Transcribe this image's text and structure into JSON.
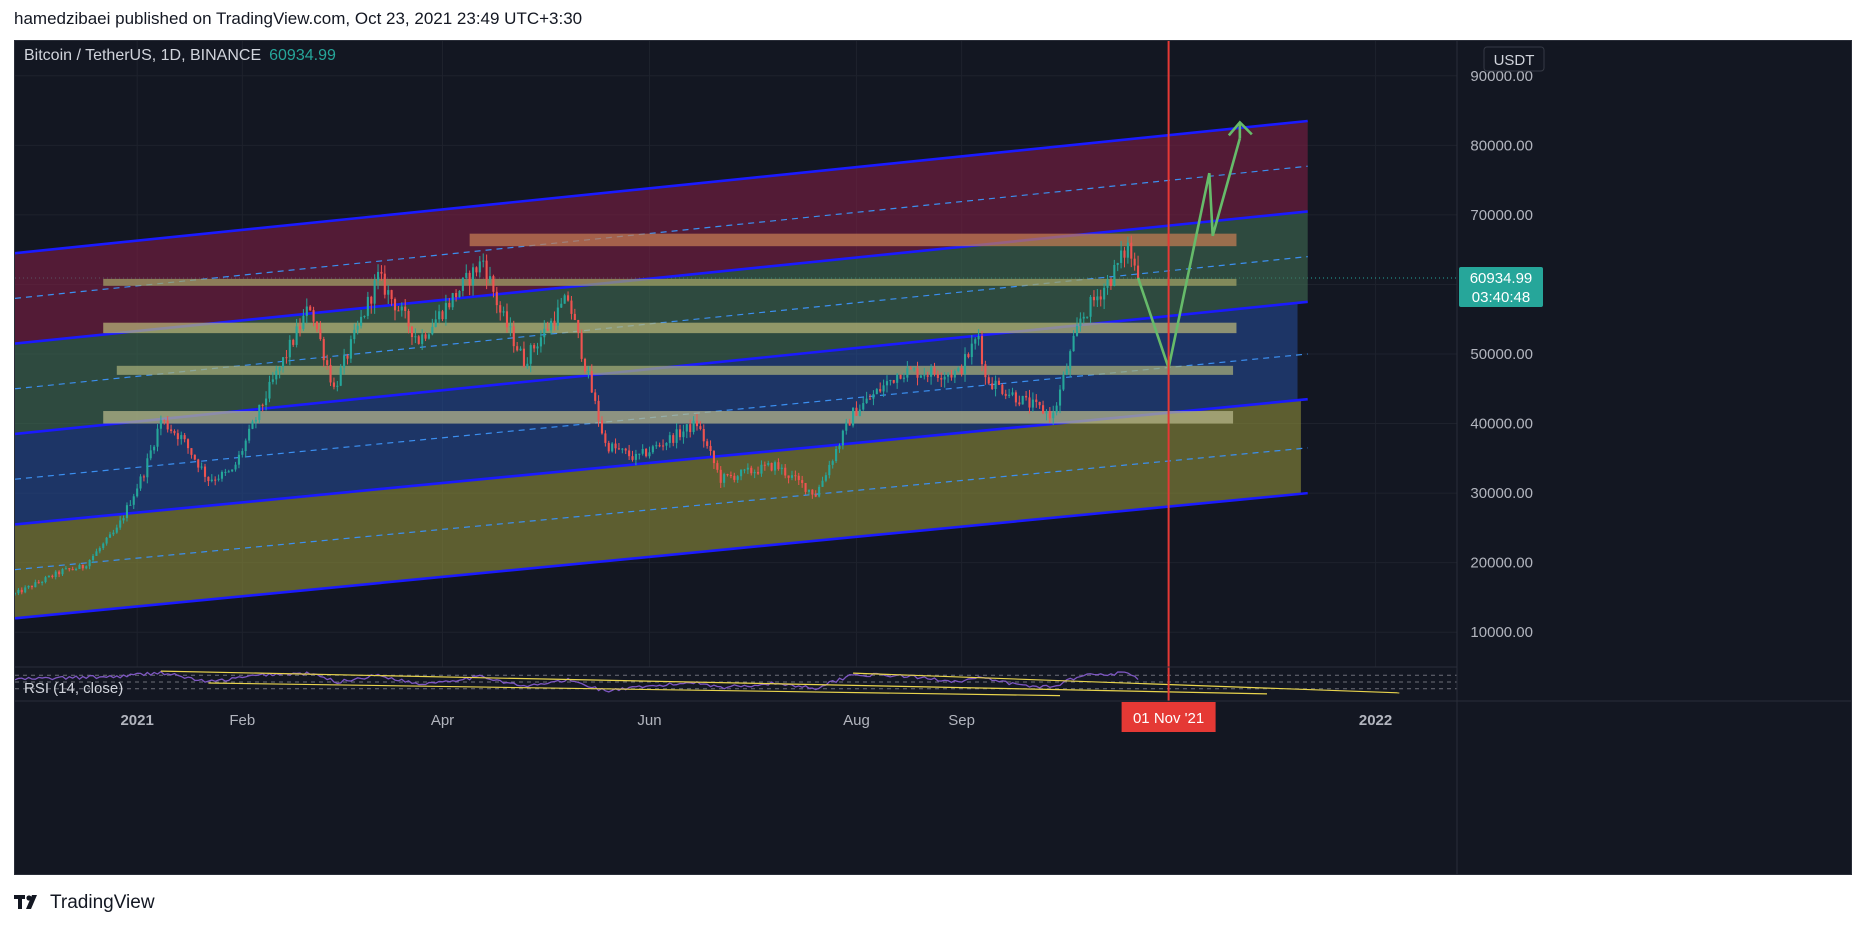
{
  "header": {
    "text": "hamedzibaei published on TradingView.com, Oct 23, 2021 23:49 UTC+3:30"
  },
  "footer": {
    "brand": "TradingView"
  },
  "chart_data": {
    "type": "candlestick",
    "symbol_line": {
      "name": "Bitcoin / TetherUS, 1D, BINANCE",
      "last_price": "60934.99"
    },
    "currency": "USDT",
    "price_label": {
      "price": "60934.99",
      "countdown": "03:40:48",
      "value": 60934.99
    },
    "y_axis": {
      "min": 5000,
      "max": 95000,
      "ticks": [
        90000,
        80000,
        70000,
        60000,
        50000,
        40000,
        30000,
        20000,
        10000
      ],
      "tick_labels": [
        "90000.00",
        "80000.00",
        "70000.00",
        "60000.00",
        "50000.00",
        "40000.00",
        "30000.00",
        "20000.00",
        "10000.00"
      ]
    },
    "x_axis": {
      "range": [
        "2020-11-26",
        "2022-01-25"
      ],
      "ticks": [
        {
          "date": "2021-01-01",
          "label": "2021",
          "bold": true
        },
        {
          "date": "2021-02-01",
          "label": "Feb"
        },
        {
          "date": "2021-04-01",
          "label": "Apr"
        },
        {
          "date": "2021-06-01",
          "label": "Jun"
        },
        {
          "date": "2021-08-01",
          "label": "Aug"
        },
        {
          "date": "2021-09-01",
          "label": "Sep"
        },
        {
          "date": "2022-01-01",
          "label": "2022",
          "bold": true
        }
      ]
    },
    "marker": {
      "date": "2021-11-01",
      "label": "01 Nov '21",
      "color": "#e53935"
    },
    "colors": {
      "up": "#26a69a",
      "down": "#ef5350",
      "accent": "#26a69a"
    },
    "channel": {
      "line_dates": [
        "2020-11-26",
        "2021-12-12"
      ],
      "band_colors": [
        "#8a8a38",
        "#24488f",
        "#3f6b50",
        "#7a1e42"
      ],
      "lines": [
        [
          12000,
          30000
        ],
        [
          25500,
          43500
        ],
        [
          38500,
          57500
        ],
        [
          51500,
          70500
        ],
        [
          64500,
          83500
        ]
      ],
      "mid_lines": [
        [
          19000,
          36500
        ],
        [
          32000,
          50000
        ],
        [
          45000,
          64000
        ],
        [
          58000,
          77000
        ]
      ],
      "band_ends": [
        [
          12000,
          30000,
          "2021-12-10"
        ],
        [
          25500,
          43500,
          "2021-12-09"
        ],
        [
          38500,
          57500,
          "2021-12-12"
        ],
        [
          51500,
          70500,
          "2021-12-12"
        ]
      ]
    },
    "zones": [
      {
        "start": "2021-04-09",
        "end": "2021-11-21",
        "low": 65500,
        "high": 67300,
        "color": "#c57d53"
      },
      {
        "start": "2020-12-22",
        "end": "2021-11-21",
        "low": 59800,
        "high": 60800,
        "color": "#a3a366"
      },
      {
        "start": "2020-12-22",
        "end": "2021-11-21",
        "low": 53000,
        "high": 54500,
        "color": "#b8b678"
      },
      {
        "start": "2020-12-26",
        "end": "2021-11-20",
        "low": 47000,
        "high": 48300,
        "color": "#a7ae7a"
      },
      {
        "start": "2020-12-22",
        "end": "2021-11-20",
        "low": 40000,
        "high": 41800,
        "color": "#b9b98c"
      }
    ],
    "projection": [
      [
        "2021-10-23",
        60934
      ],
      [
        "2021-11-01",
        48000
      ],
      [
        "2021-11-13",
        76000
      ],
      [
        "2021-11-14",
        67000
      ],
      [
        "2021-11-22",
        81000
      ]
    ],
    "projection_arrow_tip": [
      "2021-11-22",
      83300
    ],
    "anchors": [
      [
        "2020-11-26",
        15500
      ],
      [
        "2020-12-10",
        18800
      ],
      [
        "2020-12-16",
        19400
      ],
      [
        "2020-12-26",
        24700
      ],
      [
        "2021-01-03",
        33000
      ],
      [
        "2021-01-08",
        40500
      ],
      [
        "2021-01-14",
        38000
      ],
      [
        "2021-01-22",
        32000
      ],
      [
        "2021-01-29",
        33000
      ],
      [
        "2021-02-08",
        44000
      ],
      [
        "2021-02-21",
        57000
      ],
      [
        "2021-02-28",
        45000
      ],
      [
        "2021-03-13",
        61000
      ],
      [
        "2021-03-25",
        52000
      ],
      [
        "2021-04-13",
        63500
      ],
      [
        "2021-04-18",
        56000
      ],
      [
        "2021-04-25",
        49000
      ],
      [
        "2021-05-08",
        58000
      ],
      [
        "2021-05-19",
        37000
      ],
      [
        "2021-05-28",
        35000
      ],
      [
        "2021-06-15",
        40000
      ],
      [
        "2021-06-22",
        32000
      ],
      [
        "2021-07-08",
        34000
      ],
      [
        "2021-07-20",
        29800
      ],
      [
        "2021-07-31",
        41500
      ],
      [
        "2021-08-14",
        47500
      ],
      [
        "2021-08-31",
        47200
      ],
      [
        "2021-09-06",
        52700
      ],
      [
        "2021-09-08",
        46500
      ],
      [
        "2021-09-20",
        43000
      ],
      [
        "2021-09-28",
        41200
      ],
      [
        "2021-10-06",
        55000
      ],
      [
        "2021-10-15",
        61000
      ],
      [
        "2021-10-20",
        65500
      ],
      [
        "2021-10-23",
        60934
      ]
    ],
    "rsi": {
      "label": "RSI (14, close)",
      "levels": [
        70,
        50,
        30
      ],
      "anchors": [
        [
          "2020-11-26",
          58
        ],
        [
          "2020-12-26",
          66
        ],
        [
          "2021-01-08",
          78
        ],
        [
          "2021-01-22",
          50
        ],
        [
          "2021-02-08",
          72
        ],
        [
          "2021-02-21",
          75
        ],
        [
          "2021-03-01",
          50
        ],
        [
          "2021-03-13",
          70
        ],
        [
          "2021-03-25",
          44
        ],
        [
          "2021-04-13",
          66
        ],
        [
          "2021-04-25",
          36
        ],
        [
          "2021-05-08",
          56
        ],
        [
          "2021-05-19",
          24
        ],
        [
          "2021-06-15",
          50
        ],
        [
          "2021-06-22",
          34
        ],
        [
          "2021-07-08",
          46
        ],
        [
          "2021-07-20",
          32
        ],
        [
          "2021-07-31",
          72
        ],
        [
          "2021-08-14",
          68
        ],
        [
          "2021-08-31",
          52
        ],
        [
          "2021-09-06",
          62
        ],
        [
          "2021-09-20",
          38
        ],
        [
          "2021-09-28",
          36
        ],
        [
          "2021-10-06",
          70
        ],
        [
          "2021-10-15",
          74
        ],
        [
          "2021-10-20",
          76
        ],
        [
          "2021-10-23",
          60
        ]
      ],
      "trendlines": [
        [
          [
            "2021-01-08",
            82
          ],
          [
            "2021-11-30",
            15
          ]
        ],
        [
          [
            "2021-07-31",
            76
          ],
          [
            "2022-01-08",
            18
          ]
        ],
        [
          [
            "2021-01-22",
            47
          ],
          [
            "2021-09-30",
            10
          ]
        ]
      ]
    }
  }
}
